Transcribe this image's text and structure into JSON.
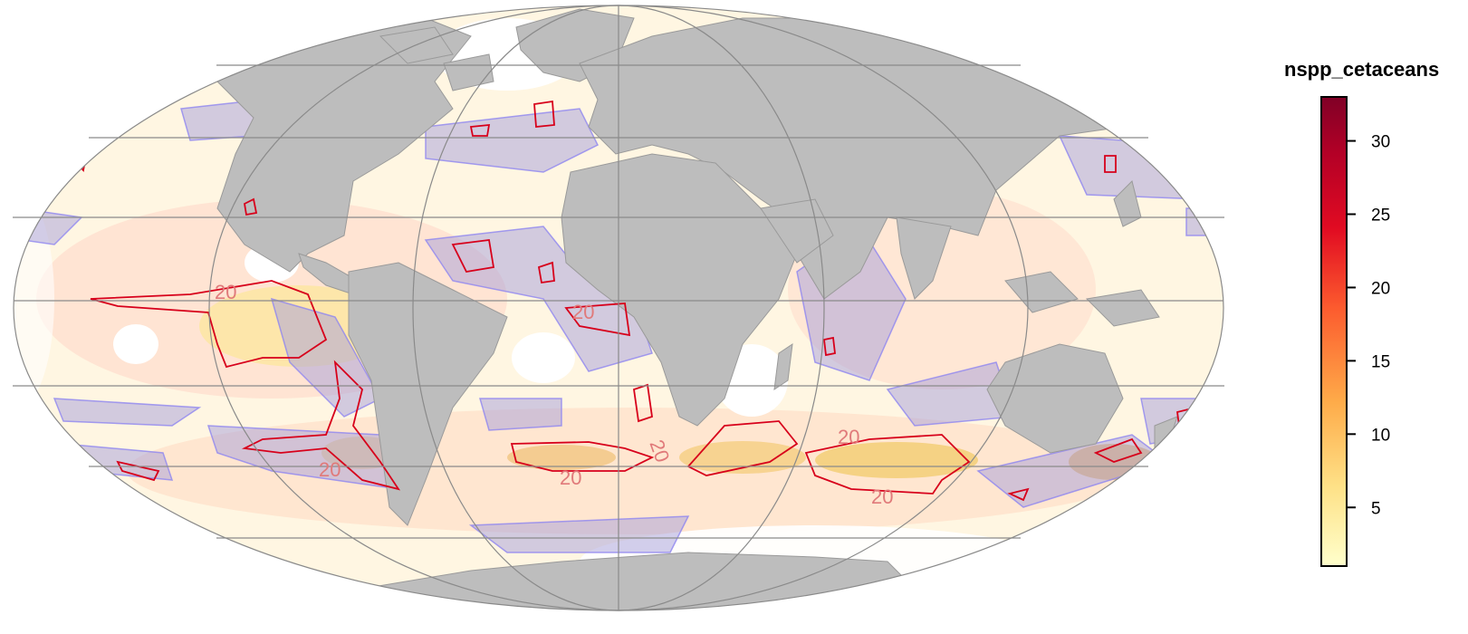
{
  "legend": {
    "title": "nspp_cetaceans",
    "ticks": [
      5,
      10,
      15,
      20,
      25,
      30
    ],
    "range": [
      1,
      33
    ],
    "colors": [
      "#ffffcc",
      "#fee187",
      "#feab49",
      "#fc5b2e",
      "#e10b22",
      "#9b0026",
      "#800026"
    ]
  },
  "contour": {
    "level": 20,
    "labels": [
      "20",
      "20",
      "20",
      "20",
      "20",
      "20",
      "20",
      "20"
    ],
    "line_color": "#d7001b"
  },
  "layers": {
    "land_color": "#bdbdbd",
    "ocean_highlight_color": "#9f98d8",
    "graticule_color": "#8a8a8a"
  }
}
